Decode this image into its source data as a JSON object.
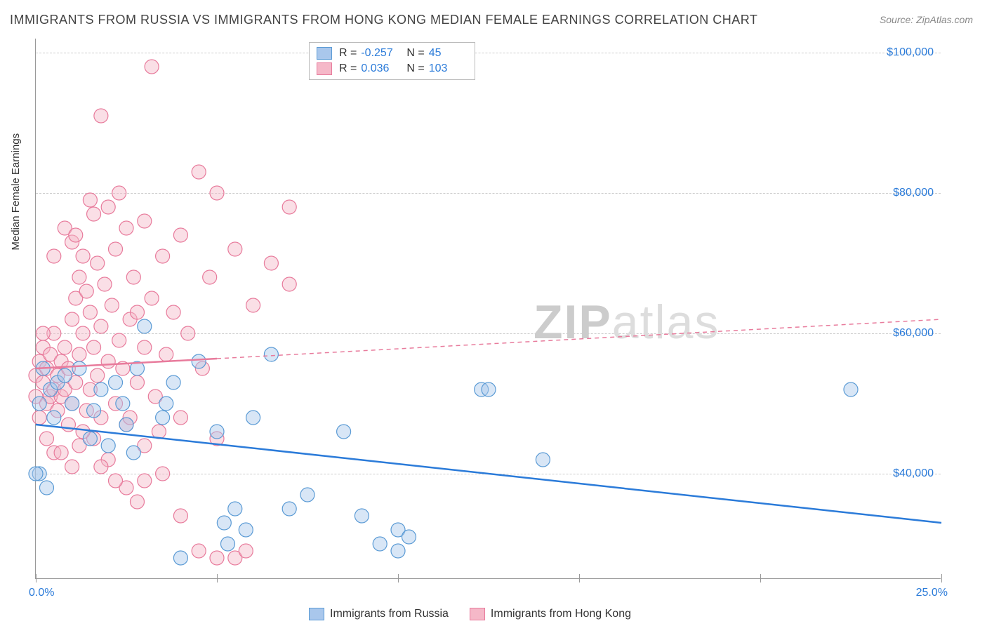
{
  "title": "IMMIGRANTS FROM RUSSIA VS IMMIGRANTS FROM HONG KONG MEDIAN FEMALE EARNINGS CORRELATION CHART",
  "source": "Source: ZipAtlas.com",
  "ylabel": "Median Female Earnings",
  "watermark_bold": "ZIP",
  "watermark_light": "atlas",
  "chart": {
    "type": "scatter-with-regression",
    "background_color": "#ffffff",
    "grid_color": "#cccccc",
    "axis_color": "#999999",
    "tick_label_color": "#2b7bd9",
    "xlim": [
      0,
      25
    ],
    "ylim": [
      25000,
      102000
    ],
    "ytick_values": [
      40000,
      60000,
      80000,
      100000
    ],
    "ytick_labels": [
      "$40,000",
      "$60,000",
      "$80,000",
      "$100,000"
    ],
    "xtick_values": [
      0,
      5,
      10,
      15,
      20,
      25
    ],
    "xtick_left_label": "0.0%",
    "xtick_right_label": "25.0%",
    "marker_radius": 10,
    "marker_opacity": 0.45,
    "line_width": 2.5
  },
  "series": [
    {
      "name": "Immigrants from Russia",
      "color_fill": "#a9c7ec",
      "color_stroke": "#5b9bd5",
      "line_color": "#2b7bd9",
      "R": "-0.257",
      "N": "45",
      "regression": {
        "x1": 0,
        "y1": 47000,
        "x2": 25,
        "y2": 33000,
        "dashed_from": 25
      },
      "points": [
        [
          0.1,
          50000
        ],
        [
          0.1,
          40000
        ],
        [
          0.2,
          55000
        ],
        [
          0.3,
          38000
        ],
        [
          0.4,
          52000
        ],
        [
          0.5,
          48000
        ],
        [
          0.6,
          53000
        ],
        [
          0.8,
          54000
        ],
        [
          1.0,
          50000
        ],
        [
          1.2,
          55000
        ],
        [
          1.5,
          45000
        ],
        [
          1.6,
          49000
        ],
        [
          1.8,
          52000
        ],
        [
          2.0,
          44000
        ],
        [
          2.2,
          53000
        ],
        [
          2.4,
          50000
        ],
        [
          2.5,
          47000
        ],
        [
          2.7,
          43000
        ],
        [
          2.8,
          55000
        ],
        [
          3.0,
          61000
        ],
        [
          3.5,
          48000
        ],
        [
          3.6,
          50000
        ],
        [
          3.8,
          53000
        ],
        [
          4.0,
          28000
        ],
        [
          4.5,
          56000
        ],
        [
          5.0,
          46000
        ],
        [
          5.2,
          33000
        ],
        [
          5.3,
          30000
        ],
        [
          5.5,
          35000
        ],
        [
          5.8,
          32000
        ],
        [
          6.0,
          48000
        ],
        [
          6.5,
          57000
        ],
        [
          7.0,
          35000
        ],
        [
          7.5,
          37000
        ],
        [
          8.5,
          46000
        ],
        [
          9.0,
          34000
        ],
        [
          9.5,
          30000
        ],
        [
          10.0,
          32000
        ],
        [
          10.0,
          29000
        ],
        [
          10.3,
          31000
        ],
        [
          12.3,
          52000
        ],
        [
          12.5,
          52000
        ],
        [
          14.0,
          42000
        ],
        [
          22.5,
          52000
        ],
        [
          0.0,
          40000
        ]
      ]
    },
    {
      "name": "Immigrants from Hong Kong",
      "color_fill": "#f5b8c8",
      "color_stroke": "#e87b9c",
      "line_color": "#e87b9c",
      "R": "0.036",
      "N": "103",
      "regression": {
        "x1": 0,
        "y1": 55000,
        "x2": 25,
        "y2": 62000,
        "dashed_from": 5
      },
      "points": [
        [
          0.0,
          54000
        ],
        [
          0.0,
          51000
        ],
        [
          0.1,
          56000
        ],
        [
          0.1,
          48000
        ],
        [
          0.2,
          53000
        ],
        [
          0.2,
          58000
        ],
        [
          0.3,
          50000
        ],
        [
          0.3,
          55000
        ],
        [
          0.4,
          51000
        ],
        [
          0.4,
          57000
        ],
        [
          0.5,
          52000
        ],
        [
          0.5,
          60000
        ],
        [
          0.5,
          43000
        ],
        [
          0.6,
          54000
        ],
        [
          0.6,
          49000
        ],
        [
          0.7,
          56000
        ],
        [
          0.7,
          51000
        ],
        [
          0.8,
          75000
        ],
        [
          0.8,
          58000
        ],
        [
          0.8,
          52000
        ],
        [
          0.9,
          55000
        ],
        [
          0.9,
          47000
        ],
        [
          1.0,
          73000
        ],
        [
          1.0,
          62000
        ],
        [
          1.0,
          50000
        ],
        [
          1.1,
          65000
        ],
        [
          1.1,
          53000
        ],
        [
          1.2,
          68000
        ],
        [
          1.2,
          57000
        ],
        [
          1.2,
          44000
        ],
        [
          1.3,
          71000
        ],
        [
          1.3,
          60000
        ],
        [
          1.4,
          66000
        ],
        [
          1.4,
          49000
        ],
        [
          1.5,
          79000
        ],
        [
          1.5,
          63000
        ],
        [
          1.5,
          52000
        ],
        [
          1.6,
          58000
        ],
        [
          1.6,
          45000
        ],
        [
          1.7,
          70000
        ],
        [
          1.7,
          54000
        ],
        [
          1.8,
          91000
        ],
        [
          1.8,
          61000
        ],
        [
          1.8,
          48000
        ],
        [
          1.9,
          67000
        ],
        [
          2.0,
          78000
        ],
        [
          2.0,
          56000
        ],
        [
          2.0,
          42000
        ],
        [
          2.1,
          64000
        ],
        [
          2.2,
          72000
        ],
        [
          2.2,
          50000
        ],
        [
          2.3,
          59000
        ],
        [
          2.3,
          80000
        ],
        [
          2.4,
          55000
        ],
        [
          2.5,
          75000
        ],
        [
          2.5,
          47000
        ],
        [
          2.5,
          38000
        ],
        [
          2.6,
          62000
        ],
        [
          2.7,
          68000
        ],
        [
          2.8,
          53000
        ],
        [
          2.8,
          36000
        ],
        [
          3.0,
          76000
        ],
        [
          3.0,
          58000
        ],
        [
          3.0,
          44000
        ],
        [
          3.2,
          65000
        ],
        [
          3.2,
          98000
        ],
        [
          3.3,
          51000
        ],
        [
          3.5,
          71000
        ],
        [
          3.5,
          40000
        ],
        [
          3.6,
          57000
        ],
        [
          3.8,
          63000
        ],
        [
          4.0,
          74000
        ],
        [
          4.0,
          48000
        ],
        [
          4.0,
          34000
        ],
        [
          4.2,
          60000
        ],
        [
          4.5,
          83000
        ],
        [
          4.5,
          29000
        ],
        [
          4.6,
          55000
        ],
        [
          4.8,
          68000
        ],
        [
          5.0,
          80000
        ],
        [
          5.0,
          45000
        ],
        [
          5.0,
          28000
        ],
        [
          5.5,
          28000
        ],
        [
          5.5,
          72000
        ],
        [
          5.8,
          29000
        ],
        [
          6.0,
          64000
        ],
        [
          6.5,
          70000
        ],
        [
          7.0,
          78000
        ],
        [
          7.0,
          67000
        ],
        [
          0.3,
          45000
        ],
        [
          0.7,
          43000
        ],
        [
          1.0,
          41000
        ],
        [
          1.3,
          46000
        ],
        [
          1.8,
          41000
        ],
        [
          2.2,
          39000
        ],
        [
          2.6,
          48000
        ],
        [
          3.0,
          39000
        ],
        [
          3.4,
          46000
        ],
        [
          0.5,
          71000
        ],
        [
          1.1,
          74000
        ],
        [
          1.6,
          77000
        ],
        [
          2.8,
          63000
        ],
        [
          0.2,
          60000
        ]
      ]
    }
  ],
  "legend_top": {
    "R_label": "R =",
    "N_label": "N ="
  },
  "legend_bottom_items": [
    {
      "label": "Immigrants from Russia",
      "fill": "#a9c7ec",
      "stroke": "#5b9bd5"
    },
    {
      "label": "Immigrants from Hong Kong",
      "fill": "#f5b8c8",
      "stroke": "#e87b9c"
    }
  ]
}
